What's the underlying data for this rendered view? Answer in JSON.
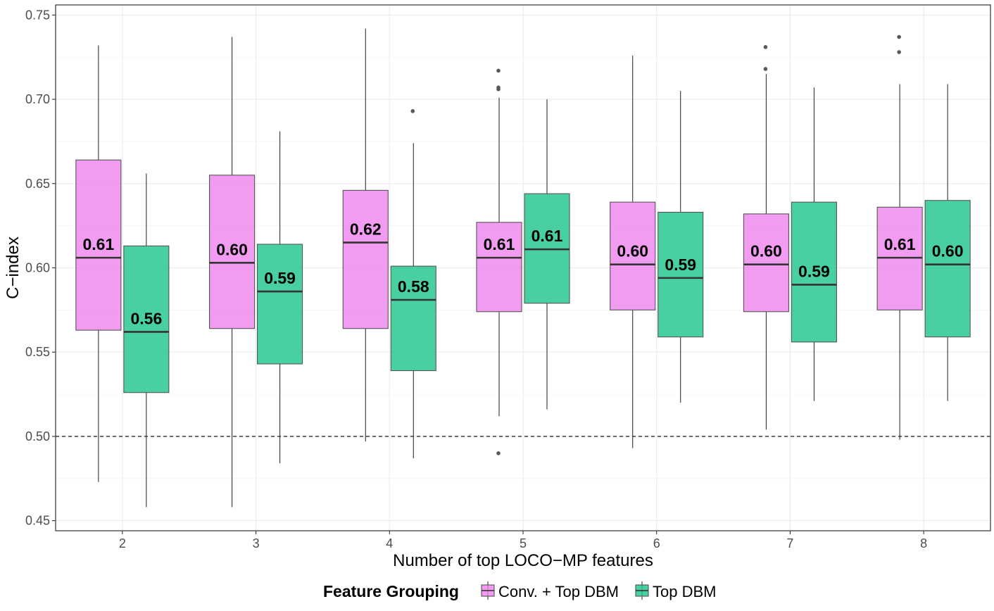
{
  "chart_data": {
    "type": "boxplot",
    "xlabel": "Number of top LOCO−MP features",
    "ylabel": "C−index",
    "ylim": [
      0.444,
      0.756
    ],
    "y_ticks": [
      "0.45",
      "0.50",
      "0.55",
      "0.60",
      "0.65",
      "0.70",
      "0.75"
    ],
    "y_tick_values": [
      0.45,
      0.5,
      0.55,
      0.6,
      0.65,
      0.7,
      0.75
    ],
    "reference_line": 0.5,
    "categories": [
      "2",
      "3",
      "4",
      "5",
      "6",
      "7",
      "8"
    ],
    "legend_title": "Feature Grouping",
    "legend_position": "bottom",
    "grid": true,
    "series": [
      {
        "name": "Conv. + Top DBM",
        "color": "#EE82EE",
        "boxes": [
          {
            "min": 0.473,
            "q1": 0.563,
            "median": 0.606,
            "q3": 0.664,
            "max": 0.732,
            "label": "0.61",
            "outliers": []
          },
          {
            "min": 0.458,
            "q1": 0.564,
            "median": 0.603,
            "q3": 0.655,
            "max": 0.737,
            "label": "0.60",
            "outliers": []
          },
          {
            "min": 0.497,
            "q1": 0.564,
            "median": 0.615,
            "q3": 0.646,
            "max": 0.742,
            "label": "0.62",
            "outliers": []
          },
          {
            "min": 0.512,
            "q1": 0.574,
            "median": 0.606,
            "q3": 0.627,
            "max": 0.701,
            "label": "0.61",
            "outliers": [
              0.717,
              0.707,
              0.706,
              0.49
            ]
          },
          {
            "min": 0.493,
            "q1": 0.575,
            "median": 0.602,
            "q3": 0.639,
            "max": 0.726,
            "label": "0.60",
            "outliers": []
          },
          {
            "min": 0.504,
            "q1": 0.574,
            "median": 0.602,
            "q3": 0.632,
            "max": 0.715,
            "label": "0.60",
            "outliers": [
              0.731,
              0.718
            ]
          },
          {
            "min": 0.498,
            "q1": 0.575,
            "median": 0.606,
            "q3": 0.636,
            "max": 0.709,
            "label": "0.61",
            "outliers": [
              0.737,
              0.728
            ]
          }
        ]
      },
      {
        "name": "Top DBM",
        "color": "#1CC48A",
        "boxes": [
          {
            "min": 0.458,
            "q1": 0.526,
            "median": 0.562,
            "q3": 0.613,
            "max": 0.656,
            "label": "0.56",
            "outliers": []
          },
          {
            "min": 0.484,
            "q1": 0.543,
            "median": 0.586,
            "q3": 0.614,
            "max": 0.681,
            "label": "0.59",
            "outliers": []
          },
          {
            "min": 0.487,
            "q1": 0.539,
            "median": 0.581,
            "q3": 0.601,
            "max": 0.674,
            "label": "0.58",
            "outliers": [
              0.693
            ]
          },
          {
            "min": 0.516,
            "q1": 0.579,
            "median": 0.611,
            "q3": 0.644,
            "max": 0.7,
            "label": "0.61",
            "outliers": []
          },
          {
            "min": 0.52,
            "q1": 0.559,
            "median": 0.594,
            "q3": 0.633,
            "max": 0.705,
            "label": "0.59",
            "outliers": []
          },
          {
            "min": 0.521,
            "q1": 0.556,
            "median": 0.59,
            "q3": 0.639,
            "max": 0.707,
            "label": "0.59",
            "outliers": []
          },
          {
            "min": 0.521,
            "q1": 0.559,
            "median": 0.602,
            "q3": 0.64,
            "max": 0.709,
            "label": "0.60",
            "outliers": []
          }
        ]
      }
    ]
  }
}
